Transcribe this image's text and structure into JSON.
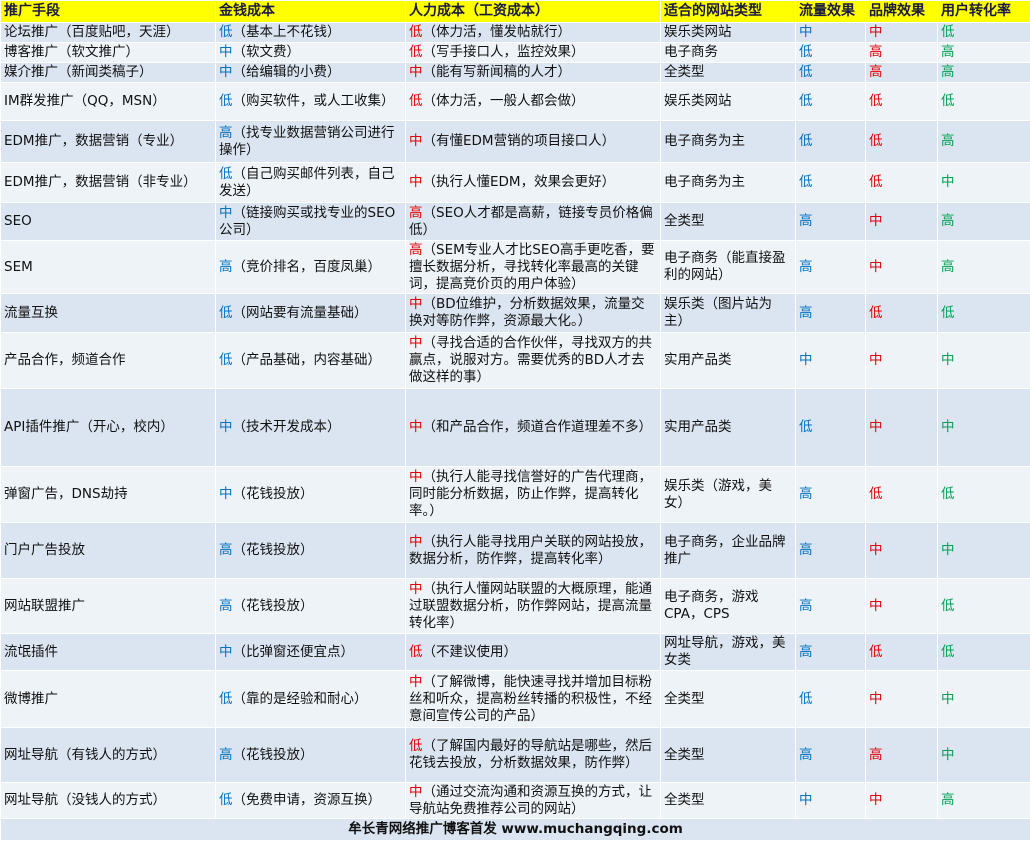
{
  "table": {
    "header": [
      "推广手段",
      "金钱成本",
      "人力成本（工资成本）",
      "适合的网站类型",
      "流量效果",
      "品牌效果",
      "用户转化率"
    ],
    "rows": [
      [
        "论坛推广（百度贴吧，天涯）",
        {
          "level": "低",
          "note": "（基本上不花钱）"
        },
        {
          "level": "低",
          "note": "（体力活，懂发帖就行）"
        },
        "娱乐类网站",
        "中",
        "中",
        "低"
      ],
      [
        "博客推广（软文推广）",
        {
          "level": "中",
          "note": "（软文费）"
        },
        {
          "level": "低",
          "note": "（写手接口人，监控效果）"
        },
        "电子商务",
        "低",
        "高",
        "高"
      ],
      [
        "媒介推广（新闻类稿子）",
        {
          "level": "中",
          "note": "（给编辑的小费）"
        },
        {
          "level": "中",
          "note": "（能有写新闻稿的人才）"
        },
        "全类型",
        "低",
        "高",
        "高"
      ],
      [
        "IM群发推广（QQ，MSN）",
        {
          "level": "低",
          "note": "（购买软件，或人工收集）"
        },
        {
          "level": "低",
          "note": "（体力活，一般人都会做）"
        },
        "娱乐类网站",
        "低",
        "低",
        "低"
      ],
      [
        "EDM推广，数据营销（专业）",
        {
          "level": "高",
          "note": "（找专业数据营销公司进行操作）"
        },
        {
          "level": "中",
          "note": "（有懂EDM营销的项目接口人）"
        },
        "电子商务为主",
        "低",
        "低",
        "高"
      ],
      [
        "EDM推广，数据营销（非专业）",
        {
          "level": "低",
          "note": "（自己购买邮件列表，自己发送）"
        },
        {
          "level": "中",
          "note": "（执行人懂EDM，效果会更好）"
        },
        "电子商务为主",
        "低",
        "低",
        "中"
      ],
      [
        "SEO",
        {
          "level": "中",
          "note": "（链接购买或找专业的SEO公司）"
        },
        {
          "level": "高",
          "note": "（SEO人才都是高薪，链接专员价格偏低）"
        },
        "全类型",
        "高",
        "中",
        "高"
      ],
      [
        "SEM",
        {
          "level": "高",
          "note": "（竞价排名，百度凤巢）"
        },
        {
          "level": "高",
          "note": "（SEM专业人才比SEO高手更吃香，要擅长数据分析，寻找转化率最高的关键词，提高竞价页的用户体验）"
        },
        "电子商务（能直接盈利的网站）",
        "高",
        "中",
        "高"
      ],
      [
        "流量互换",
        {
          "level": "低",
          "note": "（网站要有流量基础）"
        },
        {
          "level": "中",
          "note": "（BD位维护，分析数据效果，流量交换对等防作弊，资源最大化。）"
        },
        "娱乐类（图片站为主）",
        "高",
        "低",
        "低"
      ],
      [
        "产品合作，频道合作",
        {
          "level": "低",
          "note": "（产品基础，内容基础）"
        },
        {
          "level": "中",
          "note": "（寻找合适的合作伙伴，寻找双方的共赢点，说服对方。需要优秀的BD人才去做这样的事）"
        },
        "实用产品类",
        "中",
        "中",
        "中"
      ],
      [
        "API插件推广（开心，校内）",
        {
          "level": "中",
          "note": "（技术开发成本）"
        },
        {
          "level": "中",
          "note": "（和产品合作，频道合作道理差不多）"
        },
        "实用产品类",
        "低",
        "中",
        "中"
      ],
      [
        "弹窗广告，DNS劫持",
        {
          "level": "中",
          "note": "（花钱投放）"
        },
        {
          "level": "中",
          "note": "（执行人能寻找信誉好的广告代理商，同时能分析数据，防止作弊，提高转化率。）"
        },
        "娱乐类（游戏，美女）",
        "高",
        "低",
        "低"
      ],
      [
        "门户广告投放",
        {
          "level": "高",
          "note": "（花钱投放）"
        },
        {
          "level": "中",
          "note": "（执行人能寻找用户关联的网站投放，数据分析，防作弊，提高转化率）"
        },
        "电子商务，企业品牌推广",
        "高",
        "中",
        "中"
      ],
      [
        "网站联盟推广",
        {
          "level": "高",
          "note": "（花钱投放）"
        },
        {
          "level": "中",
          "note": "（执行人懂网站联盟的大概原理，能通过联盟数据分析，防作弊网站，提高流量转化率）"
        },
        "电子商务，游戏CPA，CPS",
        "高",
        "中",
        "低"
      ],
      [
        "流氓插件",
        {
          "level": "中",
          "note": "（比弹窗还便宜点）"
        },
        {
          "level": "低",
          "note": "（不建议使用）"
        },
        "网址导航，游戏，美女类",
        "高",
        "低",
        "低"
      ],
      [
        "微博推广",
        {
          "level": "低",
          "note": "（靠的是经验和耐心）"
        },
        {
          "level": "中",
          "note": "（了解微博，能快速寻找并增加目标粉丝和听众，提高粉丝转播的积极性，不经意间宣传公司的产品）"
        },
        "全类型",
        "低",
        "中",
        "中"
      ],
      [
        "网址导航（有钱人的方式）",
        {
          "level": "高",
          "note": "（花钱投放）"
        },
        {
          "level": "低",
          "note": "（了解国内最好的导航站是哪些，然后花钱去投放，分析数据效果，防作弊）"
        },
        "全类型",
        "高",
        "高",
        "中"
      ],
      [
        "网址导航（没钱人的方式）",
        {
          "level": "低",
          "note": "（免费申请，资源互换）"
        },
        {
          "level": "中",
          "note": "（通过交流沟通和资源互换的方式，让导航站免费推荐公司的网站）"
        },
        "全类型",
        "中",
        "中",
        "高"
      ]
    ],
    "footer": "牟长青网络推广博客首发 www.muchangqing.com"
  }
}
